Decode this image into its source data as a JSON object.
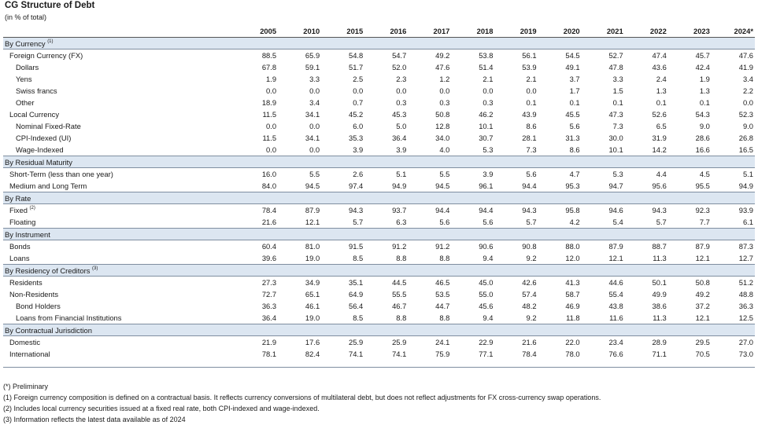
{
  "title": "CG Structure of Debt",
  "subtitle": "(in % of total)",
  "years": [
    "2005",
    "2010",
    "2015",
    "2016",
    "2017",
    "2018",
    "2019",
    "2020",
    "2021",
    "2022",
    "2023",
    "2024*"
  ],
  "sections": [
    {
      "label": "By Currency",
      "sup": "(1)",
      "rows": [
        {
          "label": "Foreign Currency (FX)",
          "indent": 1,
          "values": [
            "88.5",
            "65.9",
            "54.8",
            "54.7",
            "49.2",
            "53.8",
            "56.1",
            "54.5",
            "52.7",
            "47.4",
            "45.7",
            "47.6"
          ]
        },
        {
          "label": "Dollars",
          "indent": 2,
          "values": [
            "67.8",
            "59.1",
            "51.7",
            "52.0",
            "47.6",
            "51.4",
            "53.9",
            "49.1",
            "47.8",
            "43.6",
            "42.4",
            "41.9"
          ]
        },
        {
          "label": "Yens",
          "indent": 2,
          "values": [
            "1.9",
            "3.3",
            "2.5",
            "2.3",
            "1.2",
            "2.1",
            "2.1",
            "3.7",
            "3.3",
            "2.4",
            "1.9",
            "3.4"
          ]
        },
        {
          "label": "Swiss francs",
          "indent": 2,
          "values": [
            "0.0",
            "0.0",
            "0.0",
            "0.0",
            "0.0",
            "0.0",
            "0.0",
            "1.7",
            "1.5",
            "1.3",
            "1.3",
            "2.2"
          ]
        },
        {
          "label": "Other",
          "indent": 2,
          "values": [
            "18.9",
            "3.4",
            "0.7",
            "0.3",
            "0.3",
            "0.3",
            "0.1",
            "0.1",
            "0.1",
            "0.1",
            "0.1",
            "0.0"
          ]
        },
        {
          "label": "Local Currency",
          "indent": 1,
          "values": [
            "11.5",
            "34.1",
            "45.2",
            "45.3",
            "50.8",
            "46.2",
            "43.9",
            "45.5",
            "47.3",
            "52.6",
            "54.3",
            "52.3"
          ]
        },
        {
          "label": "Nominal Fixed-Rate",
          "indent": 2,
          "values": [
            "0.0",
            "0.0",
            "6.0",
            "5.0",
            "12.8",
            "10.1",
            "8.6",
            "5.6",
            "7.3",
            "6.5",
            "9.0",
            "9.0"
          ]
        },
        {
          "label": "CPI-Indexed (UI)",
          "indent": 2,
          "values": [
            "11.5",
            "34.1",
            "35.3",
            "36.4",
            "34.0",
            "30.7",
            "28.1",
            "31.3",
            "30.0",
            "31.9",
            "28.6",
            "26.8"
          ]
        },
        {
          "label": "Wage-Indexed",
          "indent": 2,
          "values": [
            "0.0",
            "0.0",
            "3.9",
            "3.9",
            "4.0",
            "5.3",
            "7.3",
            "8.6",
            "10.1",
            "14.2",
            "16.6",
            "16.5"
          ]
        }
      ]
    },
    {
      "label": "By Residual Maturity",
      "sup": "",
      "rows": [
        {
          "label": "Short-Term (less than one year)",
          "indent": 1,
          "values": [
            "16.0",
            "5.5",
            "2.6",
            "5.1",
            "5.5",
            "3.9",
            "5.6",
            "4.7",
            "5.3",
            "4.4",
            "4.5",
            "5.1"
          ]
        },
        {
          "label": "Medium and Long Term",
          "indent": 1,
          "values": [
            "84.0",
            "94.5",
            "97.4",
            "94.9",
            "94.5",
            "96.1",
            "94.4",
            "95.3",
            "94.7",
            "95.6",
            "95.5",
            "94.9"
          ]
        }
      ]
    },
    {
      "label": "By Rate",
      "sup": "",
      "rows": [
        {
          "label": "Fixed",
          "sup": "(2)",
          "indent": 1,
          "values": [
            "78.4",
            "87.9",
            "94.3",
            "93.7",
            "94.4",
            "94.4",
            "94.3",
            "95.8",
            "94.6",
            "94.3",
            "92.3",
            "93.9"
          ]
        },
        {
          "label": "Floating",
          "indent": 1,
          "values": [
            "21.6",
            "12.1",
            "5.7",
            "6.3",
            "5.6",
            "5.6",
            "5.7",
            "4.2",
            "5.4",
            "5.7",
            "7.7",
            "6.1"
          ]
        }
      ]
    },
    {
      "label": "By Instrument",
      "sup": "",
      "rows": [
        {
          "label": "Bonds",
          "indent": 1,
          "values": [
            "60.4",
            "81.0",
            "91.5",
            "91.2",
            "91.2",
            "90.6",
            "90.8",
            "88.0",
            "87.9",
            "88.7",
            "87.9",
            "87.3"
          ]
        },
        {
          "label": "Loans",
          "indent": 1,
          "values": [
            "39.6",
            "19.0",
            "8.5",
            "8.8",
            "8.8",
            "9.4",
            "9.2",
            "12.0",
            "12.1",
            "11.3",
            "12.1",
            "12.7"
          ]
        }
      ]
    },
    {
      "label": "By Residency of Creditors",
      "sup": "(3)",
      "rows": [
        {
          "label": "Residents",
          "indent": 1,
          "values": [
            "27.3",
            "34.9",
            "35.1",
            "44.5",
            "46.5",
            "45.0",
            "42.6",
            "41.3",
            "44.6",
            "50.1",
            "50.8",
            "51.2"
          ]
        },
        {
          "label": "Non-Residents",
          "indent": 1,
          "values": [
            "72.7",
            "65.1",
            "64.9",
            "55.5",
            "53.5",
            "55.0",
            "57.4",
            "58.7",
            "55.4",
            "49.9",
            "49.2",
            "48.8"
          ]
        },
        {
          "label": "Bond Holders",
          "indent": 2,
          "values": [
            "36.3",
            "46.1",
            "56.4",
            "46.7",
            "44.7",
            "45.6",
            "48.2",
            "46.9",
            "43.8",
            "38.6",
            "37.2",
            "36.3"
          ]
        },
        {
          "label": "Loans from Financial Institutions",
          "indent": 2,
          "values": [
            "36.4",
            "19.0",
            "8.5",
            "8.8",
            "8.8",
            "9.4",
            "9.2",
            "11.8",
            "11.6",
            "11.3",
            "12.1",
            "12.5"
          ]
        }
      ]
    },
    {
      "label": "By Contractual Jurisdiction",
      "sup": "",
      "rows": [
        {
          "label": "Domestic",
          "indent": 1,
          "values": [
            "21.9",
            "17.6",
            "25.9",
            "25.9",
            "24.1",
            "22.9",
            "21.6",
            "22.0",
            "23.4",
            "28.9",
            "29.5",
            "27.0"
          ]
        },
        {
          "label": "International",
          "indent": 1,
          "values": [
            "78.1",
            "82.4",
            "74.1",
            "74.1",
            "75.9",
            "77.1",
            "78.4",
            "78.0",
            "76.6",
            "71.1",
            "70.5",
            "73.0"
          ]
        }
      ]
    }
  ],
  "notes": [
    "(*) Preliminary",
    "(1) Foreign currency composition is defined on a contractual basis. It reflects currency conversions of multilateral debt, but does not reflect adjustments for FX cross-currency swap operations.",
    "(2) Includes local currency securities issued at a fixed real rate, both CPI-indexed and wage-indexed.",
    "(3) Information reflects the latest data available as of 2024"
  ]
}
